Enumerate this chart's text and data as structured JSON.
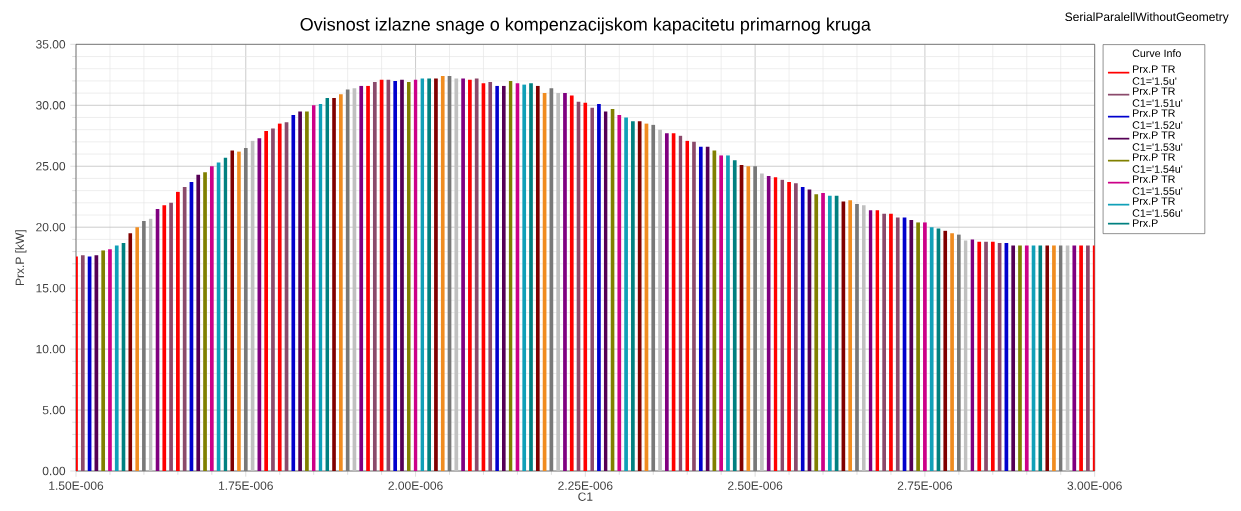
{
  "chart_data": {
    "type": "bar",
    "title": "Ovisnost izlazne snage o kompenzacijskom kapacitetu primarnog kruga",
    "xlabel": "C1",
    "ylabel": "Prx.P [kW]",
    "annotations": [
      "SerialParalellWithoutGeometry"
    ],
    "legend": "right",
    "legend_title": "Curve Info",
    "grid": true,
    "xlim": [
      1.5e-06,
      3e-06
    ],
    "ylim": [
      0,
      35
    ],
    "xticks": [
      {
        "value": 1.5e-06,
        "label": "1.50E-006"
      },
      {
        "value": 1.75e-06,
        "label": "1.75E-006"
      },
      {
        "value": 2e-06,
        "label": "2.00E-006"
      },
      {
        "value": 2.25e-06,
        "label": "2.25E-006"
      },
      {
        "value": 2.5e-06,
        "label": "2.50E-006"
      },
      {
        "value": 2.75e-06,
        "label": "2.75E-006"
      },
      {
        "value": 3e-06,
        "label": "3.00E-006"
      }
    ],
    "yticks": [
      {
        "value": 0,
        "label": "0.00"
      },
      {
        "value": 5,
        "label": "5.00"
      },
      {
        "value": 10,
        "label": "10.00"
      },
      {
        "value": 15,
        "label": "15.00"
      },
      {
        "value": 20,
        "label": "20.00"
      },
      {
        "value": 25,
        "label": "25.00"
      },
      {
        "value": 30,
        "label": "30.00"
      },
      {
        "value": 35,
        "label": "35.00"
      }
    ],
    "series": [
      {
        "name": "Prx.P TR C1='1.5u'",
        "color": "#ff0000",
        "x": [
          1.5e-06
        ],
        "values": [
          17.6
        ]
      },
      {
        "name": "Prx.P TR C1='1.51u'",
        "color": "#8b4a6b",
        "x": [
          1.51e-06
        ],
        "values": [
          17.7
        ]
      },
      {
        "name": "Prx.P TR C1='1.52u'",
        "color": "#0000cd",
        "x": [
          1.52e-06
        ],
        "values": [
          17.6
        ]
      },
      {
        "name": "Prx.P TR C1='1.53u'",
        "color": "#550055",
        "x": [
          1.53e-06
        ],
        "values": [
          17.7
        ]
      },
      {
        "name": "Prx.P TR C1='1.54u'",
        "color": "#808000",
        "x": [
          1.54e-06
        ],
        "values": [
          18.1
        ]
      },
      {
        "name": "Prx.P TR C1='1.55u'",
        "color": "#cc0088",
        "x": [
          1.55e-06
        ],
        "values": [
          18.2
        ]
      },
      {
        "name": "Prx.P TR C1='1.56u'",
        "color": "#10a0b8",
        "x": [
          1.56e-06
        ],
        "values": [
          18.5
        ]
      },
      {
        "name": "Prx.P",
        "color": "#008080",
        "x": [
          1.57e-06
        ],
        "values": [
          18.7
        ]
      },
      {
        "color": "#800000",
        "x": [
          1.58e-06
        ],
        "values": [
          19.5
        ]
      },
      {
        "color": "#f08c20",
        "x": [
          1.59e-06
        ],
        "values": [
          20.0
        ]
      },
      {
        "color": "#787878",
        "x": [
          1.6e-06
        ],
        "values": [
          20.5
        ]
      },
      {
        "color": "#c0c0c0",
        "x": [
          1.61e-06
        ],
        "values": [
          20.7
        ]
      },
      {
        "color": "#800080",
        "x": [
          1.62e-06
        ],
        "values": [
          21.5
        ]
      },
      {
        "color": "#ff0000",
        "x": [
          1.63e-06
        ],
        "values": [
          21.8
        ]
      },
      {
        "color": "#8b4a6b",
        "x": [
          1.64e-06
        ],
        "values": [
          22.0
        ]
      },
      {
        "color": "#ff0000",
        "x": [
          1.65e-06
        ],
        "values": [
          22.9
        ]
      },
      {
        "color": "#8b4a6b",
        "x": [
          1.66e-06
        ],
        "values": [
          23.3
        ]
      },
      {
        "color": "#0000cd",
        "x": [
          1.67e-06
        ],
        "values": [
          23.7
        ]
      },
      {
        "color": "#550055",
        "x": [
          1.68e-06
        ],
        "values": [
          24.3
        ]
      },
      {
        "color": "#808000",
        "x": [
          1.69e-06
        ],
        "values": [
          24.5
        ]
      },
      {
        "color": "#cc0088",
        "x": [
          1.7e-06
        ],
        "values": [
          25.0
        ]
      },
      {
        "color": "#10a0b8",
        "x": [
          1.71e-06
        ],
        "values": [
          25.3
        ]
      },
      {
        "color": "#008080",
        "x": [
          1.72e-06
        ],
        "values": [
          25.7
        ]
      },
      {
        "color": "#800000",
        "x": [
          1.73e-06
        ],
        "values": [
          26.3
        ]
      },
      {
        "color": "#f08c20",
        "x": [
          1.74e-06
        ],
        "values": [
          26.2
        ]
      },
      {
        "color": "#787878",
        "x": [
          1.75e-06
        ],
        "values": [
          26.5
        ]
      },
      {
        "color": "#c0c0c0",
        "x": [
          1.76e-06
        ],
        "values": [
          27.1
        ]
      },
      {
        "color": "#800080",
        "x": [
          1.77e-06
        ],
        "values": [
          27.3
        ]
      },
      {
        "color": "#ff0000",
        "x": [
          1.78e-06
        ],
        "values": [
          27.9
        ]
      },
      {
        "color": "#8b4a6b",
        "x": [
          1.79e-06
        ],
        "values": [
          28.1
        ]
      },
      {
        "color": "#ff0000",
        "x": [
          1.8e-06
        ],
        "values": [
          28.5
        ]
      },
      {
        "color": "#8b4a6b",
        "x": [
          1.81e-06
        ],
        "values": [
          28.6
        ]
      },
      {
        "color": "#0000cd",
        "x": [
          1.82e-06
        ],
        "values": [
          29.2
        ]
      },
      {
        "color": "#550055",
        "x": [
          1.83e-06
        ],
        "values": [
          29.5
        ]
      },
      {
        "color": "#808000",
        "x": [
          1.84e-06
        ],
        "values": [
          29.5
        ]
      },
      {
        "color": "#cc0088",
        "x": [
          1.85e-06
        ],
        "values": [
          30.0
        ]
      },
      {
        "color": "#10a0b8",
        "x": [
          1.86e-06
        ],
        "values": [
          30.1
        ]
      },
      {
        "color": "#008080",
        "x": [
          1.87e-06
        ],
        "values": [
          30.6
        ]
      },
      {
        "color": "#800000",
        "x": [
          1.88e-06
        ],
        "values": [
          30.6
        ]
      },
      {
        "color": "#f08c20",
        "x": [
          1.89e-06
        ],
        "values": [
          30.9
        ]
      },
      {
        "color": "#787878",
        "x": [
          1.9e-06
        ],
        "values": [
          31.3
        ]
      },
      {
        "color": "#c0c0c0",
        "x": [
          1.91e-06
        ],
        "values": [
          31.4
        ]
      },
      {
        "color": "#800080",
        "x": [
          1.92e-06
        ],
        "values": [
          31.6
        ]
      },
      {
        "color": "#ff0000",
        "x": [
          1.93e-06
        ],
        "values": [
          31.6
        ]
      },
      {
        "color": "#8b4a6b",
        "x": [
          1.94e-06
        ],
        "values": [
          31.9
        ]
      },
      {
        "color": "#ff0000",
        "x": [
          1.95e-06
        ],
        "values": [
          32.1
        ]
      },
      {
        "color": "#8b4a6b",
        "x": [
          1.96e-06
        ],
        "values": [
          32.1
        ]
      },
      {
        "color": "#0000cd",
        "x": [
          1.97e-06
        ],
        "values": [
          32.0
        ]
      },
      {
        "color": "#550055",
        "x": [
          1.98e-06
        ],
        "values": [
          32.1
        ]
      },
      {
        "color": "#808000",
        "x": [
          1.99e-06
        ],
        "values": [
          31.9
        ]
      },
      {
        "color": "#cc0088",
        "x": [
          2e-06
        ],
        "values": [
          32.1
        ]
      },
      {
        "color": "#10a0b8",
        "x": [
          2.01e-06
        ],
        "values": [
          32.2
        ]
      },
      {
        "color": "#008080",
        "x": [
          2.02e-06
        ],
        "values": [
          32.2
        ]
      },
      {
        "color": "#800000",
        "x": [
          2.03e-06
        ],
        "values": [
          32.2
        ]
      },
      {
        "color": "#f08c20",
        "x": [
          2.04e-06
        ],
        "values": [
          32.4
        ]
      },
      {
        "color": "#787878",
        "x": [
          2.05e-06
        ],
        "values": [
          32.4
        ]
      },
      {
        "color": "#c0c0c0",
        "x": [
          2.06e-06
        ],
        "values": [
          32.2
        ]
      },
      {
        "color": "#800080",
        "x": [
          2.07e-06
        ],
        "values": [
          32.2
        ]
      },
      {
        "color": "#ff0000",
        "x": [
          2.08e-06
        ],
        "values": [
          32.1
        ]
      },
      {
        "color": "#8b4a6b",
        "x": [
          2.09e-06
        ],
        "values": [
          32.2
        ]
      },
      {
        "color": "#ff0000",
        "x": [
          2.1e-06
        ],
        "values": [
          31.8
        ]
      },
      {
        "color": "#8b4a6b",
        "x": [
          2.11e-06
        ],
        "values": [
          31.9
        ]
      },
      {
        "color": "#0000cd",
        "x": [
          2.12e-06
        ],
        "values": [
          31.6
        ]
      },
      {
        "color": "#550055",
        "x": [
          2.13e-06
        ],
        "values": [
          31.6
        ]
      },
      {
        "color": "#808000",
        "x": [
          2.14e-06
        ],
        "values": [
          32.0
        ]
      },
      {
        "color": "#cc0088",
        "x": [
          2.15e-06
        ],
        "values": [
          31.8
        ]
      },
      {
        "color": "#10a0b8",
        "x": [
          2.16e-06
        ],
        "values": [
          31.7
        ]
      },
      {
        "color": "#008080",
        "x": [
          2.17e-06
        ],
        "values": [
          31.8
        ]
      },
      {
        "color": "#800000",
        "x": [
          2.18e-06
        ],
        "values": [
          31.6
        ]
      },
      {
        "color": "#f08c20",
        "x": [
          2.19e-06
        ],
        "values": [
          31.0
        ]
      },
      {
        "color": "#787878",
        "x": [
          2.2e-06
        ],
        "values": [
          31.4
        ]
      },
      {
        "color": "#c0c0c0",
        "x": [
          2.21e-06
        ],
        "values": [
          31.0
        ]
      },
      {
        "color": "#800080",
        "x": [
          2.22e-06
        ],
        "values": [
          31.0
        ]
      },
      {
        "color": "#ff0000",
        "x": [
          2.23e-06
        ],
        "values": [
          30.8
        ]
      },
      {
        "color": "#8b4a6b",
        "x": [
          2.24e-06
        ],
        "values": [
          30.3
        ]
      },
      {
        "color": "#ff0000",
        "x": [
          2.25e-06
        ],
        "values": [
          30.2
        ]
      },
      {
        "color": "#8b4a6b",
        "x": [
          2.26e-06
        ],
        "values": [
          29.8
        ]
      },
      {
        "color": "#0000cd",
        "x": [
          2.27e-06
        ],
        "values": [
          30.1
        ]
      },
      {
        "color": "#550055",
        "x": [
          2.28e-06
        ],
        "values": [
          29.5
        ]
      },
      {
        "color": "#808000",
        "x": [
          2.29e-06
        ],
        "values": [
          29.7
        ]
      },
      {
        "color": "#cc0088",
        "x": [
          2.3e-06
        ],
        "values": [
          29.2
        ]
      },
      {
        "color": "#10a0b8",
        "x": [
          2.31e-06
        ],
        "values": [
          29.0
        ]
      },
      {
        "color": "#008080",
        "x": [
          2.32e-06
        ],
        "values": [
          28.7
        ]
      },
      {
        "color": "#800000",
        "x": [
          2.33e-06
        ],
        "values": [
          28.7
        ]
      },
      {
        "color": "#f08c20",
        "x": [
          2.34e-06
        ],
        "values": [
          28.5
        ]
      },
      {
        "color": "#787878",
        "x": [
          2.35e-06
        ],
        "values": [
          28.4
        ]
      },
      {
        "color": "#c0c0c0",
        "x": [
          2.36e-06
        ],
        "values": [
          28.0
        ]
      },
      {
        "color": "#800080",
        "x": [
          2.37e-06
        ],
        "values": [
          27.7
        ]
      },
      {
        "color": "#ff0000",
        "x": [
          2.38e-06
        ],
        "values": [
          27.7
        ]
      },
      {
        "color": "#8b4a6b",
        "x": [
          2.39e-06
        ],
        "values": [
          27.5
        ]
      },
      {
        "color": "#ff0000",
        "x": [
          2.4e-06
        ],
        "values": [
          27.1
        ]
      },
      {
        "color": "#8b4a6b",
        "x": [
          2.41e-06
        ],
        "values": [
          27.0
        ]
      },
      {
        "color": "#0000cd",
        "x": [
          2.42e-06
        ],
        "values": [
          26.6
        ]
      },
      {
        "color": "#550055",
        "x": [
          2.43e-06
        ],
        "values": [
          26.6
        ]
      },
      {
        "color": "#808000",
        "x": [
          2.44e-06
        ],
        "values": [
          26.3
        ]
      },
      {
        "color": "#cc0088",
        "x": [
          2.45e-06
        ],
        "values": [
          25.9
        ]
      },
      {
        "color": "#10a0b8",
        "x": [
          2.46e-06
        ],
        "values": [
          25.9
        ]
      },
      {
        "color": "#008080",
        "x": [
          2.47e-06
        ],
        "values": [
          25.5
        ]
      },
      {
        "color": "#800000",
        "x": [
          2.48e-06
        ],
        "values": [
          25.1
        ]
      },
      {
        "color": "#f08c20",
        "x": [
          2.49e-06
        ],
        "values": [
          25.0
        ]
      },
      {
        "color": "#787878",
        "x": [
          2.5e-06
        ],
        "values": [
          25.0
        ]
      },
      {
        "color": "#c0c0c0",
        "x": [
          2.51e-06
        ],
        "values": [
          24.4
        ]
      },
      {
        "color": "#800080",
        "x": [
          2.52e-06
        ],
        "values": [
          24.2
        ]
      },
      {
        "color": "#ff0000",
        "x": [
          2.53e-06
        ],
        "values": [
          24.1
        ]
      },
      {
        "color": "#8b4a6b",
        "x": [
          2.54e-06
        ],
        "values": [
          23.9
        ]
      },
      {
        "color": "#ff0000",
        "x": [
          2.55e-06
        ],
        "values": [
          23.7
        ]
      },
      {
        "color": "#8b4a6b",
        "x": [
          2.56e-06
        ],
        "values": [
          23.6
        ]
      },
      {
        "color": "#0000cd",
        "x": [
          2.57e-06
        ],
        "values": [
          23.3
        ]
      },
      {
        "color": "#550055",
        "x": [
          2.58e-06
        ],
        "values": [
          23.1
        ]
      },
      {
        "color": "#808000",
        "x": [
          2.59e-06
        ],
        "values": [
          22.7
        ]
      },
      {
        "color": "#cc0088",
        "x": [
          2.6e-06
        ],
        "values": [
          22.8
        ]
      },
      {
        "color": "#10a0b8",
        "x": [
          2.61e-06
        ],
        "values": [
          22.6
        ]
      },
      {
        "color": "#008080",
        "x": [
          2.62e-06
        ],
        "values": [
          22.6
        ]
      },
      {
        "color": "#800000",
        "x": [
          2.63e-06
        ],
        "values": [
          22.1
        ]
      },
      {
        "color": "#f08c20",
        "x": [
          2.64e-06
        ],
        "values": [
          22.2
        ]
      },
      {
        "color": "#787878",
        "x": [
          2.65e-06
        ],
        "values": [
          21.9
        ]
      },
      {
        "color": "#c0c0c0",
        "x": [
          2.66e-06
        ],
        "values": [
          21.8
        ]
      },
      {
        "color": "#800080",
        "x": [
          2.67e-06
        ],
        "values": [
          21.4
        ]
      },
      {
        "color": "#ff0000",
        "x": [
          2.68e-06
        ],
        "values": [
          21.4
        ]
      },
      {
        "color": "#8b4a6b",
        "x": [
          2.69e-06
        ],
        "values": [
          21.1
        ]
      },
      {
        "color": "#ff0000",
        "x": [
          2.7e-06
        ],
        "values": [
          21.1
        ]
      },
      {
        "color": "#8b4a6b",
        "x": [
          2.71e-06
        ],
        "values": [
          20.8
        ]
      },
      {
        "color": "#0000cd",
        "x": [
          2.72e-06
        ],
        "values": [
          20.8
        ]
      },
      {
        "color": "#550055",
        "x": [
          2.73e-06
        ],
        "values": [
          20.6
        ]
      },
      {
        "color": "#808000",
        "x": [
          2.74e-06
        ],
        "values": [
          20.4
        ]
      },
      {
        "color": "#cc0088",
        "x": [
          2.75e-06
        ],
        "values": [
          20.4
        ]
      },
      {
        "color": "#10a0b8",
        "x": [
          2.76e-06
        ],
        "values": [
          20.0
        ]
      },
      {
        "color": "#008080",
        "x": [
          2.77e-06
        ],
        "values": [
          19.9
        ]
      },
      {
        "color": "#800000",
        "x": [
          2.78e-06
        ],
        "values": [
          19.7
        ]
      },
      {
        "color": "#f08c20",
        "x": [
          2.79e-06
        ],
        "values": [
          19.5
        ]
      },
      {
        "color": "#787878",
        "x": [
          2.8e-06
        ],
        "values": [
          19.4
        ]
      },
      {
        "color": "#c0c0c0",
        "x": [
          2.81e-06
        ],
        "values": [
          18.9
        ]
      },
      {
        "color": "#800080",
        "x": [
          2.82e-06
        ],
        "values": [
          19.0
        ]
      },
      {
        "color": "#ff0000",
        "x": [
          2.83e-06
        ],
        "values": [
          18.8
        ]
      },
      {
        "color": "#8b4a6b",
        "x": [
          2.84e-06
        ],
        "values": [
          18.8
        ]
      },
      {
        "color": "#ff0000",
        "x": [
          2.85e-06
        ],
        "values": [
          18.8
        ]
      },
      {
        "color": "#8b4a6b",
        "x": [
          2.86e-06
        ],
        "values": [
          18.7
        ]
      },
      {
        "color": "#0000cd",
        "x": [
          2.87e-06
        ],
        "values": [
          18.7
        ]
      },
      {
        "color": "#550055",
        "x": [
          2.88e-06
        ],
        "values": [
          18.5
        ]
      },
      {
        "color": "#808000",
        "x": [
          2.89e-06
        ],
        "values": [
          18.5
        ]
      },
      {
        "color": "#cc0088",
        "x": [
          2.9e-06
        ],
        "values": [
          18.5
        ]
      },
      {
        "color": "#10a0b8",
        "x": [
          2.91e-06
        ],
        "values": [
          18.5
        ]
      },
      {
        "color": "#008080",
        "x": [
          2.92e-06
        ],
        "values": [
          18.5
        ]
      },
      {
        "color": "#800000",
        "x": [
          2.93e-06
        ],
        "values": [
          18.5
        ]
      },
      {
        "color": "#f08c20",
        "x": [
          2.94e-06
        ],
        "values": [
          18.5
        ]
      },
      {
        "color": "#787878",
        "x": [
          2.95e-06
        ],
        "values": [
          18.5
        ]
      },
      {
        "color": "#c0c0c0",
        "x": [
          2.96e-06
        ],
        "values": [
          18.5
        ]
      },
      {
        "color": "#800080",
        "x": [
          2.97e-06
        ],
        "values": [
          18.5
        ]
      },
      {
        "color": "#ff0000",
        "x": [
          2.98e-06
        ],
        "values": [
          18.5
        ]
      },
      {
        "color": "#8b4a6b",
        "x": [
          2.99e-06
        ],
        "values": [
          18.5
        ]
      },
      {
        "color": "#ff0000",
        "x": [
          3e-06
        ],
        "values": [
          18.5
        ]
      }
    ]
  }
}
